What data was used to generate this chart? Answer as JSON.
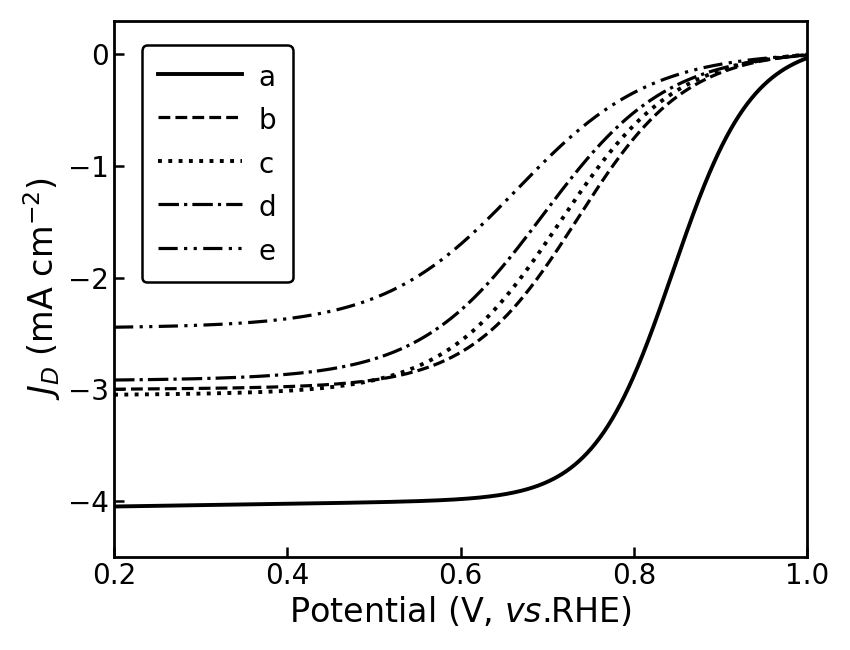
{
  "xlim": [
    0.2,
    1.0
  ],
  "ylim": [
    -4.5,
    0.3
  ],
  "xticks": [
    0.2,
    0.4,
    0.6,
    0.8,
    1.0
  ],
  "yticks": [
    0,
    -1,
    -2,
    -3,
    -4
  ],
  "xlabel": "Potential (V, \\textit{vs}.RHE)",
  "curves": {
    "a": {
      "label": "a",
      "linestyle": "solid",
      "linewidth": 2.8,
      "plateau": -4.05,
      "half_wave": 0.845,
      "steepness": 22,
      "slope_low": 0.12
    },
    "b": {
      "label": "b",
      "linestyle": "dashed",
      "linewidth": 2.3,
      "plateau": -3.0,
      "half_wave": 0.735,
      "steepness": 16,
      "slope_low": 0.05
    },
    "c": {
      "label": "c",
      "linestyle": "dotted",
      "linewidth": 2.8,
      "plateau": -3.05,
      "half_wave": 0.715,
      "steepness": 15,
      "slope_low": 0.05
    },
    "d": {
      "label": "d",
      "linestyle": "dashdot",
      "linewidth": 2.3,
      "plateau": -2.92,
      "half_wave": 0.695,
      "steepness": 14,
      "slope_low": 0.04
    },
    "e": {
      "label": "e",
      "linestyle": "dashdotdotted",
      "linewidth": 2.3,
      "plateau": -2.45,
      "half_wave": 0.665,
      "steepness": 13,
      "slope_low": 0.03
    }
  },
  "legend_fontsize": 20,
  "tick_fontsize": 20,
  "label_fontsize": 24,
  "background_color": "#ffffff",
  "line_color": "#000000",
  "figsize": [
    8.5,
    6.5
  ],
  "dpi": 100
}
